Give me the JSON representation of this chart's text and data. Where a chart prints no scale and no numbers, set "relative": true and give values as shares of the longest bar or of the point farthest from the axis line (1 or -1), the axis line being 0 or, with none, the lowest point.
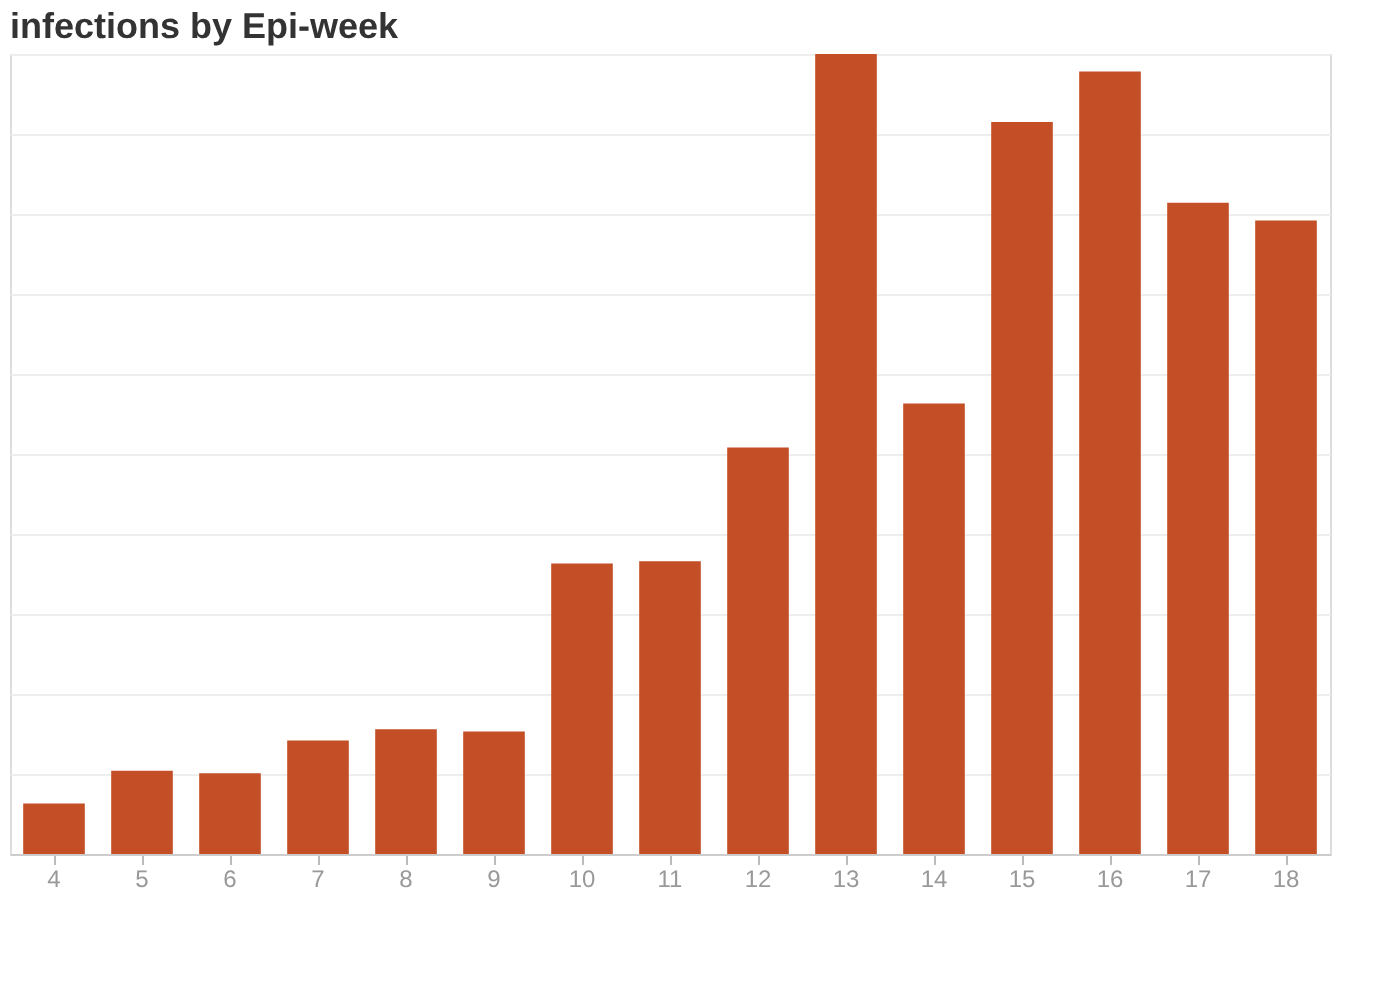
{
  "chart_data": {
    "type": "bar",
    "title": "infections by Epi-week",
    "relative": true,
    "categories": [
      "4",
      "5",
      "6",
      "7",
      "8",
      "9",
      "10",
      "11",
      "12",
      "13",
      "14",
      "15",
      "16",
      "17",
      "18"
    ],
    "values": [
      0.063,
      0.104,
      0.101,
      0.142,
      0.156,
      0.153,
      0.363,
      0.366,
      0.508,
      1,
      0.563,
      0.915,
      0.978,
      0.814,
      0.792
    ],
    "color": "#c44e26",
    "grid": "y"
  }
}
